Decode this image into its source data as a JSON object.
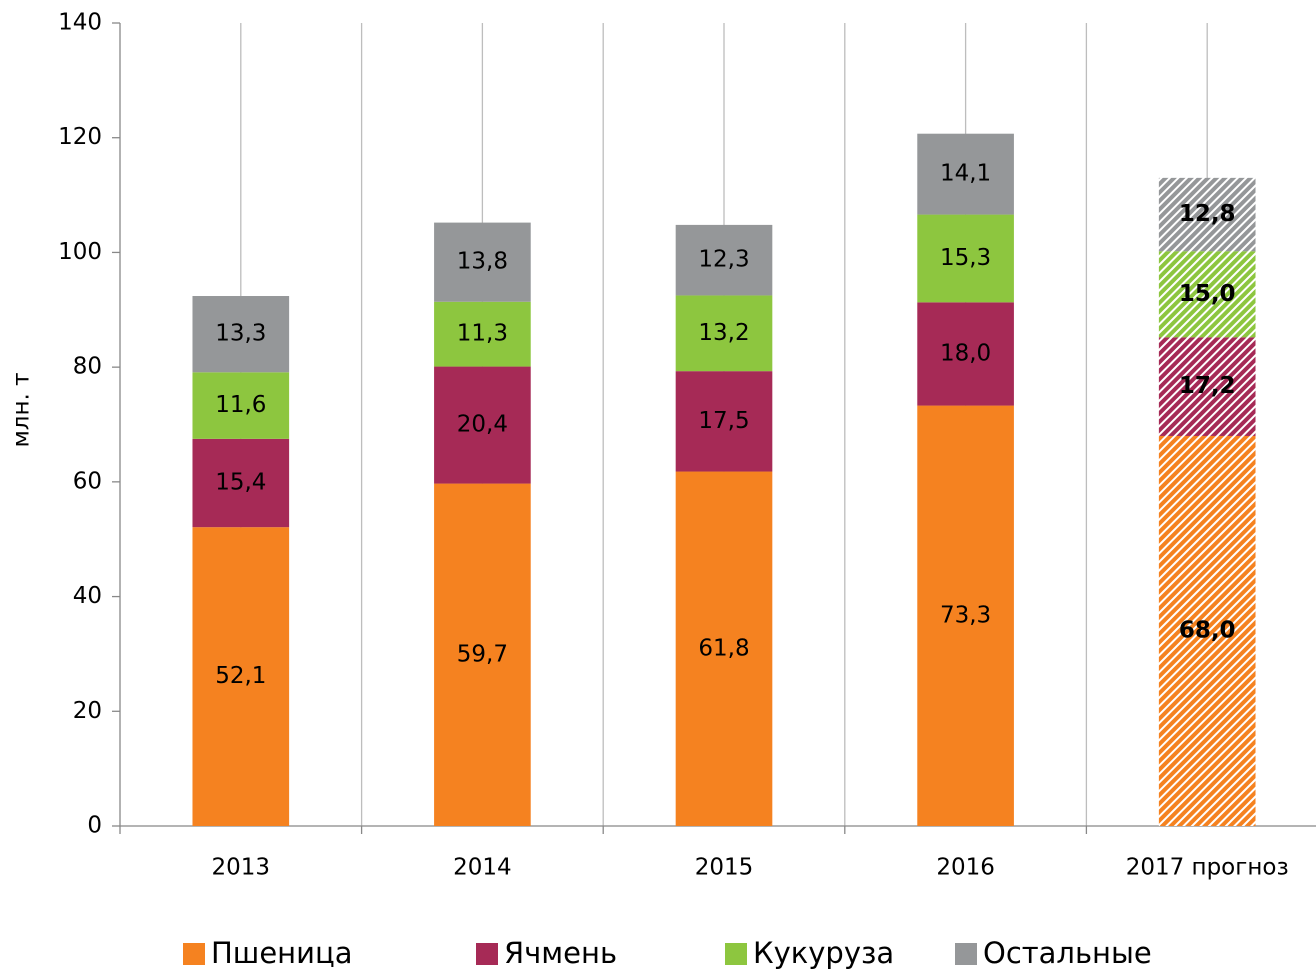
{
  "chart_data": {
    "type": "stacked_bar",
    "y_label": "млн. т",
    "categories": [
      "2013",
      "2014",
      "2015",
      "2016",
      "2017 прогноз"
    ],
    "hatched_categories": [
      "2017 прогноз"
    ],
    "series": [
      {
        "name": "Пшеница",
        "color": "#f58220",
        "values": [
          52.1,
          59.7,
          61.8,
          73.3,
          68.0
        ],
        "value_labels": [
          "52,1",
          "59,7",
          "61,8",
          "73,3",
          "68,0"
        ]
      },
      {
        "name": "Ячмень",
        "color": "#a62a56",
        "values": [
          15.4,
          20.4,
          17.5,
          18.0,
          17.2
        ],
        "value_labels": [
          "15,4",
          "20,4",
          "17,5",
          "18,0",
          "17,2"
        ]
      },
      {
        "name": "Кукуруза",
        "color": "#8dc63f",
        "values": [
          11.6,
          11.3,
          13.2,
          15.3,
          15.0
        ],
        "value_labels": [
          "11,6",
          "11,3",
          "13,2",
          "15,3",
          "15,0"
        ]
      },
      {
        "name": "Остальные",
        "color": "#959799",
        "values": [
          13.3,
          13.8,
          12.3,
          14.1,
          12.8
        ],
        "value_labels": [
          "13,3",
          "13,8",
          "12,3",
          "14,1",
          "12,8"
        ]
      }
    ],
    "ylim": [
      0,
      140
    ],
    "yticks": [
      0,
      20,
      40,
      60,
      80,
      100,
      120,
      140
    ],
    "grid": "vertical",
    "legend": "bottom"
  }
}
